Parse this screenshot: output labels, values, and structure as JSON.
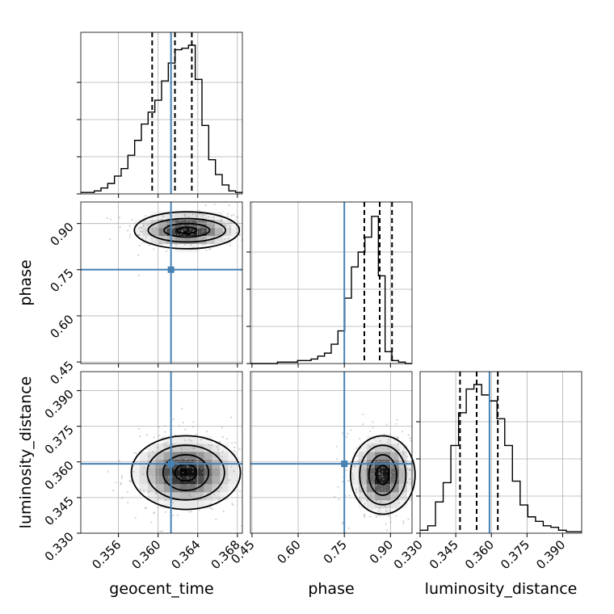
{
  "colors": {
    "truth": "#4682b4",
    "hist": "#000000",
    "grid": "#b0b0b0",
    "points": "#9e9e9e"
  },
  "chart_data": {
    "type": "corner",
    "parameters": [
      "geocent_time",
      "phase",
      "luminosity_distance"
    ],
    "truths": {
      "geocent_time": 0.3613,
      "phase": 0.75,
      "luminosity_distance": 0.3592
    },
    "quantiles": {
      "geocent_time": [
        0.3594,
        0.3617,
        0.3634
      ],
      "phase": [
        0.815,
        0.865,
        0.905
      ],
      "luminosity_distance": [
        0.3468,
        0.3538,
        0.3627
      ]
    },
    "axes": {
      "geocent_time": {
        "lim": [
          0.3522,
          0.3685
        ],
        "ticks": [
          0.356,
          0.36,
          0.364,
          0.368
        ],
        "tick_labels": [
          "0.356",
          "0.360",
          "0.364",
          "0.368"
        ]
      },
      "phase": {
        "lim": [
          0.445,
          0.97
        ],
        "ticks": [
          0.45,
          0.6,
          0.75,
          0.9
        ],
        "tick_labels": [
          "0.45",
          "0.60",
          "0.75",
          "0.90"
        ]
      },
      "luminosity_distance": {
        "lim": [
          0.33,
          0.398
        ],
        "ticks": [
          0.33,
          0.345,
          0.36,
          0.375,
          0.39
        ],
        "tick_labels": [
          "0.330",
          "0.345",
          "0.360",
          "0.375",
          "0.390"
        ]
      }
    },
    "histograms": {
      "geocent_time": {
        "range": [
          0.3522,
          0.3685
        ],
        "counts": [
          0.01,
          0.01,
          0.02,
          0.04,
          0.07,
          0.12,
          0.17,
          0.26,
          0.36,
          0.47,
          0.55,
          0.63,
          0.76,
          0.88,
          0.97,
          0.98,
          1.0,
          0.77,
          0.46,
          0.23,
          0.13,
          0.06,
          0.02,
          0.01
        ]
      },
      "phase": {
        "range": [
          0.445,
          0.97
        ],
        "counts": [
          0.0,
          0.0,
          0.0,
          0.0,
          0.01,
          0.01,
          0.01,
          0.02,
          0.02,
          0.03,
          0.05,
          0.07,
          0.13,
          0.22,
          0.44,
          0.65,
          0.75,
          0.85,
          0.99,
          0.59,
          0.08,
          0.02,
          0.01,
          0.0
        ]
      },
      "luminosity_distance": {
        "range": [
          0.33,
          0.398
        ],
        "counts": [
          0.02,
          0.05,
          0.21,
          0.34,
          0.59,
          0.81,
          0.97,
          1.0,
          0.93,
          0.89,
          0.77,
          0.59,
          0.35,
          0.19,
          0.11,
          0.08,
          0.05,
          0.04,
          0.02,
          0.01,
          0.01
        ]
      }
    },
    "contours_2d": [
      {
        "x": "geocent_time",
        "y": "phase",
        "center": [
          0.3629,
          0.878
        ],
        "spread": [
          0.0025,
          0.028
        ],
        "levels": [
          [
            0.0053,
            0.06
          ],
          [
            0.0039,
            0.038
          ],
          [
            0.0023,
            0.022
          ],
          [
            0.001,
            0.01
          ]
        ]
      },
      {
        "x": "geocent_time",
        "y": "luminosity_distance",
        "center": [
          0.3628,
          0.3555
        ],
        "spread": [
          0.0025,
          0.0085
        ],
        "levels": [
          [
            0.0055,
            0.0155
          ],
          [
            0.0039,
            0.0115
          ],
          [
            0.0023,
            0.0075
          ],
          [
            0.0011,
            0.0035
          ]
        ]
      },
      {
        "x": "phase",
        "y": "luminosity_distance",
        "center": [
          0.875,
          0.3545
        ],
        "spread": [
          0.05,
          0.0085
        ],
        "levels": [
          [
            0.105,
            0.0165
          ],
          [
            0.075,
            0.0125
          ],
          [
            0.045,
            0.0085
          ],
          [
            0.02,
            0.004
          ]
        ]
      }
    ]
  }
}
